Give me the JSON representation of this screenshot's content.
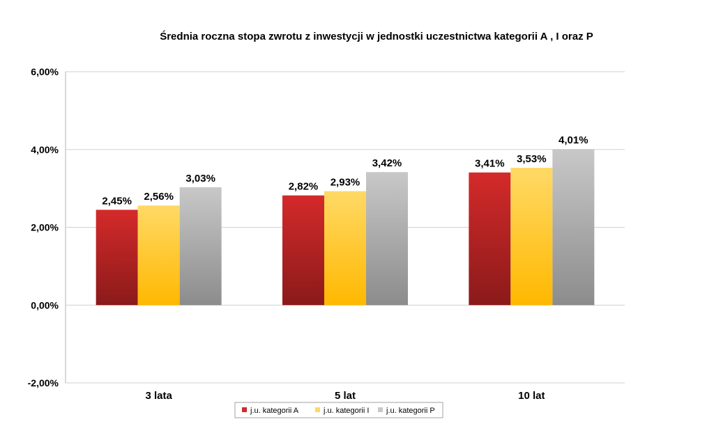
{
  "chart_data": {
    "type": "bar",
    "title": "Średnia roczna stopa zwrotu z inwestycji w jednostki uczestnictwa kategorii A , I oraz P",
    "categories": [
      "3 lata",
      "5 lat",
      "10 lat"
    ],
    "series": [
      {
        "name": "j.u. kategorii A",
        "values": [
          2.45,
          2.82,
          3.41
        ],
        "labels": [
          "2,45%",
          "2,82%",
          "3,41%"
        ],
        "color_top": "#d42a2a",
        "color_bottom": "#8b1a1a"
      },
      {
        "name": "j.u. kategorii I",
        "values": [
          2.56,
          2.93,
          3.53
        ],
        "labels": [
          "2,56%",
          "2,93%",
          "3,53%"
        ],
        "color_top": "#ffd966",
        "color_bottom": "#ffb800"
      },
      {
        "name": "j.u. kategorii P",
        "values": [
          3.03,
          3.42,
          4.01
        ],
        "labels": [
          "3,03%",
          "3,42%",
          "4,01%"
        ],
        "color_top": "#c8c8c8",
        "color_bottom": "#8c8c8c"
      }
    ],
    "yticks": [
      6,
      4,
      2,
      0,
      -2
    ],
    "ytick_labels": [
      "6,00%",
      "4,00%",
      "2,00%",
      "0,00%",
      "-2,00%"
    ],
    "ylim": [
      -2,
      6
    ],
    "grid": true,
    "legend_position": "bottom-center"
  }
}
